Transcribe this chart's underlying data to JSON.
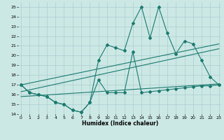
{
  "xlabel": "Humidex (Indice chaleur)",
  "x_values": [
    0,
    1,
    2,
    3,
    4,
    5,
    6,
    7,
    8,
    9,
    10,
    11,
    12,
    13,
    14,
    15,
    16,
    17,
    18,
    19,
    20,
    21,
    22,
    23
  ],
  "line1_y": [
    17.0,
    16.2,
    16.0,
    15.8,
    15.2,
    15.0,
    14.4,
    14.2,
    15.2,
    17.5,
    16.2,
    16.2,
    16.2,
    20.4,
    16.2,
    16.3,
    16.4,
    16.5,
    16.6,
    16.7,
    16.8,
    16.9,
    16.9,
    17.0
  ],
  "line2_y": [
    17.0,
    16.2,
    16.0,
    15.8,
    15.2,
    15.0,
    14.4,
    14.2,
    15.2,
    19.5,
    21.1,
    20.8,
    20.5,
    23.3,
    25.0,
    21.8,
    25.0,
    22.3,
    20.2,
    21.5,
    21.2,
    19.5,
    17.8,
    17.0
  ],
  "trend1_x": [
    0,
    23
  ],
  "trend1_y": [
    17.0,
    21.2
  ],
  "trend2_x": [
    0,
    23
  ],
  "trend2_y": [
    16.3,
    20.7
  ],
  "trend3_x": [
    0,
    23
  ],
  "trend3_y": [
    15.8,
    17.1
  ],
  "ylim": [
    14,
    25.5
  ],
  "xlim": [
    -0.3,
    23.3
  ],
  "yticks": [
    14,
    15,
    16,
    17,
    18,
    19,
    20,
    21,
    22,
    23,
    24,
    25
  ],
  "xticks": [
    0,
    1,
    2,
    3,
    4,
    5,
    6,
    7,
    8,
    9,
    10,
    11,
    12,
    13,
    14,
    15,
    16,
    17,
    18,
    19,
    20,
    21,
    22,
    23
  ],
  "line_color": "#1a7a6e",
  "bg_color": "#cce8e5",
  "grid_color": "#aaced0"
}
